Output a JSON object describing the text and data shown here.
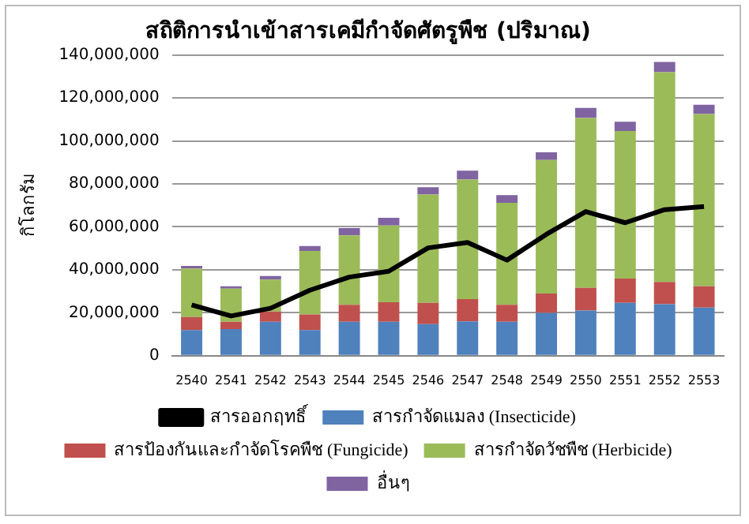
{
  "chart_data": {
    "type": "bar",
    "title": "สถิติการนำเข้าสารเคมีกำจัดศัตรูพืช (ปริมาณ)",
    "ylabel": "กิโลกรัม",
    "stacked": true,
    "categories": [
      "2540",
      "2541",
      "2542",
      "2543",
      "2544",
      "2545",
      "2546",
      "2547",
      "2548",
      "2549",
      "2550",
      "2551",
      "2552",
      "2553"
    ],
    "series": [
      {
        "name": "สารกำจัดแมลง (Insecticide)",
        "color": "#4f81bd",
        "values": [
          12000000,
          12400000,
          15800000,
          12000000,
          15800000,
          15800000,
          14700000,
          16000000,
          15800000,
          19900000,
          21000000,
          24600000,
          24000000,
          22400000
        ]
      },
      {
        "name": "สารป้องกันและกำจัดโรคพืช (Fungicide)",
        "color": "#c0504d",
        "values": [
          6000000,
          3400000,
          4800000,
          7200000,
          7900000,
          9100000,
          9900000,
          10400000,
          7900000,
          9000000,
          10600000,
          11300000,
          10400000,
          9900000
        ]
      },
      {
        "name": "สารกำจัดวัชพืช (Herbicide)",
        "color": "#9bbb59",
        "values": [
          22600000,
          15400000,
          14900000,
          29600000,
          32300000,
          35700000,
          50400000,
          55600000,
          47500000,
          62200000,
          79100000,
          68700000,
          97600000,
          80200000
        ]
      },
      {
        "name": "อื่นๆ",
        "color": "#8064a2",
        "values": [
          1200000,
          1100000,
          1600000,
          2300000,
          3400000,
          3600000,
          3400000,
          4100000,
          3600000,
          3600000,
          4600000,
          4300000,
          4700000,
          4300000
        ]
      },
      {
        "name": "สารออกฤทธิ์",
        "color": "#000000",
        "type": "line",
        "values": [
          23700000,
          18500000,
          22100000,
          30500000,
          36600000,
          39300000,
          50200000,
          52700000,
          44500000,
          56500000,
          67100000,
          61900000,
          68000000,
          69400000
        ]
      }
    ],
    "ylim": [
      0,
      140000000
    ],
    "yticks": [
      {
        "value": 0,
        "label": "0"
      },
      {
        "value": 20000000,
        "label": "20,000,000"
      },
      {
        "value": 40000000,
        "label": "40,000,000"
      },
      {
        "value": 60000000,
        "label": "60,000,000"
      },
      {
        "value": 80000000,
        "label": "80,000,000"
      },
      {
        "value": 100000000,
        "label": "100,000,000"
      },
      {
        "value": 120000000,
        "label": "120,000,000"
      },
      {
        "value": 140000000,
        "label": "140,000,000"
      }
    ],
    "grid": "y",
    "legend": "bottom",
    "marker": "none"
  }
}
